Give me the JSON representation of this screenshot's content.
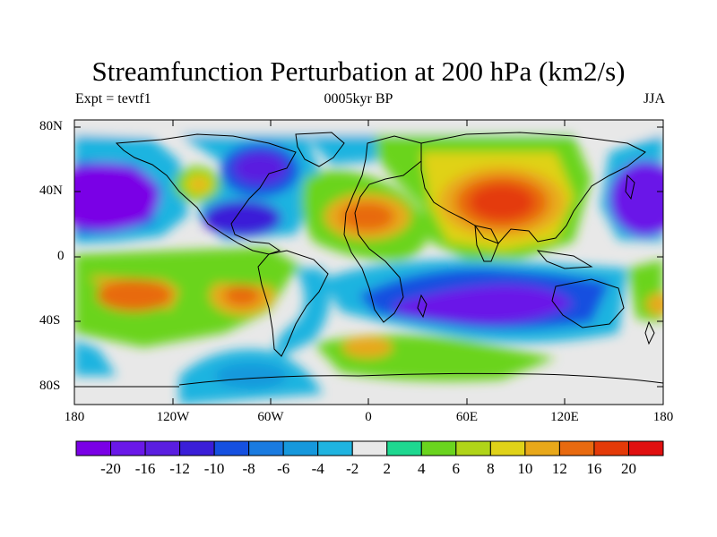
{
  "title": "Streamfunction Perturbation at 200 hPa (km2/s)",
  "subtitle_left": "Expt = tevtf1",
  "subtitle_center": "0005kyr BP",
  "subtitle_right": "JJA",
  "lat_ticks": [
    "80N",
    "40N",
    "0",
    "40S",
    "80S"
  ],
  "lon_ticks": [
    "180",
    "120W",
    "60W",
    "0",
    "60E",
    "120E",
    "180"
  ],
  "colorbar": {
    "colors": [
      "#7a00e6",
      "#6a18e8",
      "#5a1ee0",
      "#3a1ed8",
      "#1550e0",
      "#1a7be0",
      "#1698dc",
      "#1fb4e0",
      "#e8e8e8",
      "#1ed890",
      "#6ad41e",
      "#b0d418",
      "#e0d218",
      "#e8a81a",
      "#e86a10",
      "#e43a08",
      "#e01010"
    ],
    "labels": [
      "-20",
      "-16",
      "-12",
      "-10",
      "-8",
      "-6",
      "-4",
      "-2",
      "2",
      "4",
      "6",
      "8",
      "10",
      "12",
      "16",
      "20"
    ]
  }
}
